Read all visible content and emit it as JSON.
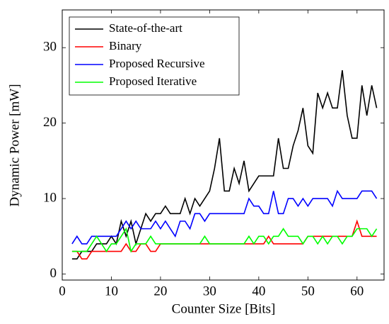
{
  "chart_data": {
    "type": "line",
    "x_label": "Counter Size [Bits]",
    "y_label": "Dynamic Power [mW]",
    "x": [
      2,
      3,
      4,
      5,
      6,
      7,
      8,
      9,
      10,
      11,
      12,
      13,
      14,
      15,
      16,
      17,
      18,
      19,
      20,
      21,
      22,
      23,
      24,
      25,
      26,
      27,
      28,
      29,
      30,
      31,
      32,
      33,
      34,
      35,
      36,
      37,
      38,
      39,
      40,
      41,
      42,
      43,
      44,
      45,
      46,
      47,
      48,
      49,
      50,
      51,
      52,
      53,
      54,
      55,
      56,
      57,
      58,
      59,
      60,
      61,
      62,
      63,
      64
    ],
    "series": [
      {
        "name": "State-of-the-art",
        "color": "#000000",
        "values": [
          2,
          2,
          3,
          3,
          3,
          4,
          4,
          4,
          5,
          4,
          7,
          5,
          7,
          4,
          6,
          8,
          7,
          8,
          8,
          9,
          8,
          8,
          8,
          10,
          8,
          10,
          9,
          10,
          11,
          14,
          18,
          11,
          11,
          14,
          12,
          15,
          11,
          12,
          13,
          13,
          13,
          13,
          18,
          14,
          14,
          17,
          19,
          22,
          17,
          16,
          24,
          22,
          24,
          22,
          22,
          27,
          21,
          18,
          18,
          25,
          21,
          25,
          22
        ]
      },
      {
        "name": "Binary",
        "color": "#ff0000",
        "values": [
          3,
          3,
          2,
          2,
          3,
          3,
          3,
          3,
          3,
          3,
          3,
          4,
          3,
          3,
          4,
          4,
          3,
          3,
          4,
          4,
          4,
          4,
          4,
          4,
          4,
          4,
          4,
          4,
          4,
          4,
          4,
          4,
          4,
          4,
          4,
          4,
          4,
          4,
          4,
          4,
          5,
          4,
          4,
          4,
          4,
          4,
          4,
          4,
          5,
          5,
          5,
          5,
          5,
          5,
          5,
          5,
          5,
          5,
          7,
          5,
          5,
          5,
          5
        ]
      },
      {
        "name": "Proposed Recursive",
        "color": "#0000ff",
        "values": [
          4,
          5,
          4,
          4,
          5,
          5,
          5,
          5,
          5,
          5,
          6,
          7,
          6,
          7,
          6,
          6,
          6,
          7,
          6,
          7,
          6,
          5,
          7,
          7,
          6,
          8,
          8,
          7,
          8,
          8,
          8,
          8,
          8,
          8,
          8,
          8,
          10,
          9,
          9,
          8,
          8,
          11,
          8,
          8,
          10,
          10,
          9,
          10,
          9,
          10,
          10,
          10,
          10,
          9,
          11,
          10,
          10,
          10,
          10,
          11,
          11,
          11,
          10
        ]
      },
      {
        "name": "Proposed Iterative",
        "color": "#00ff00",
        "values": [
          3,
          3,
          3,
          3,
          4,
          5,
          4,
          3,
          4,
          4,
          5,
          6,
          3,
          4,
          4,
          4,
          5,
          4,
          4,
          4,
          4,
          4,
          4,
          4,
          4,
          4,
          4,
          5,
          4,
          4,
          4,
          4,
          4,
          4,
          4,
          4,
          5,
          4,
          5,
          5,
          4,
          5,
          5,
          6,
          5,
          5,
          5,
          4,
          5,
          5,
          4,
          5,
          4,
          5,
          5,
          4,
          5,
          5,
          6,
          6,
          6,
          5,
          6
        ]
      }
    ],
    "xlim": [
      0,
      65.5
    ],
    "ylim": [
      -0.8,
      35
    ],
    "xticks": [
      0,
      10,
      20,
      30,
      40,
      50,
      60
    ],
    "yticks": [
      0,
      10,
      20,
      30
    ],
    "legend": "top-left"
  }
}
